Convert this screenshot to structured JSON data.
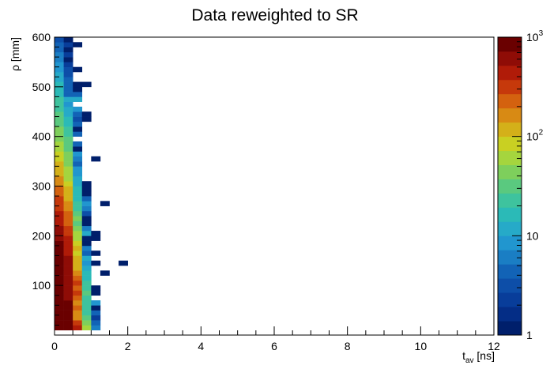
{
  "chart_data": {
    "type": "heatmap",
    "title": "Data reweighted to SR",
    "xlabel": "t",
    "xlabel_sub": "av",
    "xlabel_unit": " [ns]",
    "ylabel": "ρ [mm]",
    "xlim": [
      0,
      12
    ],
    "ylim": [
      0,
      600
    ],
    "xticks": [
      0,
      2,
      4,
      6,
      8,
      10,
      12
    ],
    "yticks": [
      100,
      200,
      300,
      400,
      500,
      600
    ],
    "colorbar": {
      "scale": "log",
      "range": [
        1,
        1000
      ],
      "ticks": [
        {
          "value": 1,
          "base": "1",
          "exp": ""
        },
        {
          "value": 10,
          "base": "10",
          "exp": ""
        },
        {
          "value": 100,
          "base": "10",
          "exp": "2"
        },
        {
          "value": 1000,
          "base": "10",
          "exp": "3"
        }
      ],
      "palette": [
        "#001f6b",
        "#042d86",
        "#083d9a",
        "#0d4ea8",
        "#1263b6",
        "#1a7ec4",
        "#2196cf",
        "#26aac8",
        "#2bbab7",
        "#3ec39e",
        "#5ac97f",
        "#7ecf5c",
        "#a5d53e",
        "#c9d022",
        "#d4b019",
        "#d88a14",
        "#d4620f",
        "#c6390b",
        "#b01b08",
        "#8f0c06",
        "#6a0000"
      ]
    },
    "bin_width_x": 0.25,
    "bin_width_y": 10,
    "bins": [
      {
        "x": 0.125,
        "y": 15,
        "v": 1000
      },
      {
        "x": 0.375,
        "y": 15,
        "v": 900
      },
      {
        "x": 0.625,
        "y": 15,
        "v": 400
      },
      {
        "x": 0.875,
        "y": 15,
        "v": 55
      },
      {
        "x": 1.125,
        "y": 15,
        "v": 6
      },
      {
        "x": 0.125,
        "y": 25,
        "v": 1000
      },
      {
        "x": 0.375,
        "y": 25,
        "v": 900
      },
      {
        "x": 0.625,
        "y": 25,
        "v": 300
      },
      {
        "x": 0.875,
        "y": 25,
        "v": 40
      },
      {
        "x": 1.125,
        "y": 25,
        "v": 4
      },
      {
        "x": 0.125,
        "y": 35,
        "v": 1000
      },
      {
        "x": 0.375,
        "y": 35,
        "v": 850
      },
      {
        "x": 0.625,
        "y": 35,
        "v": 180
      },
      {
        "x": 0.875,
        "y": 35,
        "v": 30
      },
      {
        "x": 1.125,
        "y": 35,
        "v": 2
      },
      {
        "x": 0.125,
        "y": 45,
        "v": 1000
      },
      {
        "x": 0.375,
        "y": 45,
        "v": 850
      },
      {
        "x": 0.625,
        "y": 45,
        "v": 150
      },
      {
        "x": 0.875,
        "y": 45,
        "v": 25
      },
      {
        "x": 1.125,
        "y": 45,
        "v": 5
      },
      {
        "x": 0.125,
        "y": 55,
        "v": 1000
      },
      {
        "x": 0.375,
        "y": 55,
        "v": 800
      },
      {
        "x": 0.625,
        "y": 55,
        "v": 200
      },
      {
        "x": 0.875,
        "y": 55,
        "v": 20
      },
      {
        "x": 1.125,
        "y": 55,
        "v": 1
      },
      {
        "x": 0.125,
        "y": 65,
        "v": 1000
      },
      {
        "x": 0.375,
        "y": 65,
        "v": 800
      },
      {
        "x": 0.625,
        "y": 65,
        "v": 150
      },
      {
        "x": 0.875,
        "y": 65,
        "v": 25
      },
      {
        "x": 1.125,
        "y": 65,
        "v": 8
      },
      {
        "x": 0.125,
        "y": 75,
        "v": 1000
      },
      {
        "x": 0.375,
        "y": 75,
        "v": 700
      },
      {
        "x": 0.625,
        "y": 75,
        "v": 250
      },
      {
        "x": 0.875,
        "y": 75,
        "v": 20
      },
      {
        "x": 0.125,
        "y": 85,
        "v": 1000
      },
      {
        "x": 0.375,
        "y": 85,
        "v": 700
      },
      {
        "x": 0.625,
        "y": 85,
        "v": 300
      },
      {
        "x": 0.875,
        "y": 85,
        "v": 30
      },
      {
        "x": 1.125,
        "y": 85,
        "v": 1
      },
      {
        "x": 0.125,
        "y": 95,
        "v": 1000
      },
      {
        "x": 0.375,
        "y": 95,
        "v": 700
      },
      {
        "x": 0.625,
        "y": 95,
        "v": 200
      },
      {
        "x": 0.875,
        "y": 95,
        "v": 25
      },
      {
        "x": 1.125,
        "y": 95,
        "v": 1
      },
      {
        "x": 0.125,
        "y": 105,
        "v": 1000
      },
      {
        "x": 0.375,
        "y": 105,
        "v": 650
      },
      {
        "x": 0.625,
        "y": 105,
        "v": 300
      },
      {
        "x": 0.875,
        "y": 105,
        "v": 20
      },
      {
        "x": 0.125,
        "y": 115,
        "v": 1000
      },
      {
        "x": 0.375,
        "y": 115,
        "v": 650
      },
      {
        "x": 0.625,
        "y": 115,
        "v": 250
      },
      {
        "x": 0.875,
        "y": 115,
        "v": 15
      },
      {
        "x": 0.125,
        "y": 125,
        "v": 1000
      },
      {
        "x": 0.375,
        "y": 125,
        "v": 600
      },
      {
        "x": 0.625,
        "y": 125,
        "v": 150
      },
      {
        "x": 0.875,
        "y": 125,
        "v": 15
      },
      {
        "x": 1.375,
        "y": 125,
        "v": 1
      },
      {
        "x": 0.125,
        "y": 135,
        "v": 1000
      },
      {
        "x": 0.375,
        "y": 135,
        "v": 600
      },
      {
        "x": 0.625,
        "y": 135,
        "v": 120
      },
      {
        "x": 0.875,
        "y": 135,
        "v": 10
      },
      {
        "x": 0.125,
        "y": 145,
        "v": 950
      },
      {
        "x": 0.375,
        "y": 145,
        "v": 550
      },
      {
        "x": 0.625,
        "y": 145,
        "v": 100
      },
      {
        "x": 0.875,
        "y": 145,
        "v": 8
      },
      {
        "x": 1.125,
        "y": 145,
        "v": 1
      },
      {
        "x": 1.875,
        "y": 145,
        "v": 1
      },
      {
        "x": 0.125,
        "y": 155,
        "v": 900
      },
      {
        "x": 0.375,
        "y": 155,
        "v": 550
      },
      {
        "x": 0.625,
        "y": 155,
        "v": 110
      },
      {
        "x": 0.875,
        "y": 155,
        "v": 10
      },
      {
        "x": 0.125,
        "y": 165,
        "v": 900
      },
      {
        "x": 0.375,
        "y": 165,
        "v": 500
      },
      {
        "x": 0.625,
        "y": 165,
        "v": 80
      },
      {
        "x": 0.875,
        "y": 165,
        "v": 5
      },
      {
        "x": 1.125,
        "y": 165,
        "v": 1
      },
      {
        "x": 0.125,
        "y": 175,
        "v": 800
      },
      {
        "x": 0.375,
        "y": 175,
        "v": 450
      },
      {
        "x": 0.625,
        "y": 175,
        "v": 100
      },
      {
        "x": 0.875,
        "y": 175,
        "v": 6
      },
      {
        "x": 0.125,
        "y": 185,
        "v": 750
      },
      {
        "x": 0.375,
        "y": 185,
        "v": 450
      },
      {
        "x": 0.625,
        "y": 185,
        "v": 80
      },
      {
        "x": 0.875,
        "y": 185,
        "v": 1
      },
      {
        "x": 0.125,
        "y": 195,
        "v": 700
      },
      {
        "x": 0.375,
        "y": 195,
        "v": 400
      },
      {
        "x": 0.625,
        "y": 195,
        "v": 70
      },
      {
        "x": 0.875,
        "y": 195,
        "v": 1
      },
      {
        "x": 1.125,
        "y": 195,
        "v": 1
      },
      {
        "x": 0.125,
        "y": 205,
        "v": 600
      },
      {
        "x": 0.375,
        "y": 205,
        "v": 350
      },
      {
        "x": 0.625,
        "y": 205,
        "v": 60
      },
      {
        "x": 0.875,
        "y": 205,
        "v": 10
      },
      {
        "x": 1.125,
        "y": 205,
        "v": 1
      },
      {
        "x": 0.125,
        "y": 215,
        "v": 550
      },
      {
        "x": 0.375,
        "y": 215,
        "v": 300
      },
      {
        "x": 0.625,
        "y": 215,
        "v": 50
      },
      {
        "x": 0.875,
        "y": 215,
        "v": 6
      },
      {
        "x": 0.125,
        "y": 225,
        "v": 500
      },
      {
        "x": 0.375,
        "y": 225,
        "v": 250
      },
      {
        "x": 0.625,
        "y": 225,
        "v": 30
      },
      {
        "x": 0.875,
        "y": 225,
        "v": 1
      },
      {
        "x": 0.125,
        "y": 235,
        "v": 450
      },
      {
        "x": 0.375,
        "y": 235,
        "v": 250
      },
      {
        "x": 0.625,
        "y": 235,
        "v": 40
      },
      {
        "x": 0.875,
        "y": 235,
        "v": 1
      },
      {
        "x": 0.125,
        "y": 245,
        "v": 380
      },
      {
        "x": 0.375,
        "y": 245,
        "v": 200
      },
      {
        "x": 0.625,
        "y": 245,
        "v": 30
      },
      {
        "x": 0.875,
        "y": 245,
        "v": 3
      },
      {
        "x": 0.125,
        "y": 255,
        "v": 350
      },
      {
        "x": 0.375,
        "y": 255,
        "v": 180
      },
      {
        "x": 0.625,
        "y": 255,
        "v": 25
      },
      {
        "x": 0.875,
        "y": 255,
        "v": 6
      },
      {
        "x": 0.125,
        "y": 265,
        "v": 300
      },
      {
        "x": 0.375,
        "y": 265,
        "v": 150
      },
      {
        "x": 0.625,
        "y": 265,
        "v": 20
      },
      {
        "x": 0.875,
        "y": 265,
        "v": 8
      },
      {
        "x": 1.375,
        "y": 265,
        "v": 1
      },
      {
        "x": 0.125,
        "y": 275,
        "v": 280
      },
      {
        "x": 0.375,
        "y": 275,
        "v": 120
      },
      {
        "x": 0.625,
        "y": 275,
        "v": 18
      },
      {
        "x": 0.875,
        "y": 275,
        "v": 4
      },
      {
        "x": 0.125,
        "y": 285,
        "v": 220
      },
      {
        "x": 0.375,
        "y": 285,
        "v": 100
      },
      {
        "x": 0.625,
        "y": 285,
        "v": 15
      },
      {
        "x": 0.875,
        "y": 285,
        "v": 1
      },
      {
        "x": 0.125,
        "y": 295,
        "v": 200
      },
      {
        "x": 0.375,
        "y": 295,
        "v": 100
      },
      {
        "x": 0.625,
        "y": 295,
        "v": 15
      },
      {
        "x": 0.875,
        "y": 295,
        "v": 1
      },
      {
        "x": 0.125,
        "y": 305,
        "v": 180
      },
      {
        "x": 0.375,
        "y": 305,
        "v": 80
      },
      {
        "x": 0.625,
        "y": 305,
        "v": 10
      },
      {
        "x": 0.875,
        "y": 305,
        "v": 1
      },
      {
        "x": 0.125,
        "y": 315,
        "v": 150
      },
      {
        "x": 0.375,
        "y": 315,
        "v": 70
      },
      {
        "x": 0.625,
        "y": 315,
        "v": 10
      },
      {
        "x": 0.125,
        "y": 325,
        "v": 130
      },
      {
        "x": 0.375,
        "y": 325,
        "v": 60
      },
      {
        "x": 0.625,
        "y": 325,
        "v": 8
      },
      {
        "x": 0.125,
        "y": 335,
        "v": 110
      },
      {
        "x": 0.375,
        "y": 335,
        "v": 60
      },
      {
        "x": 0.625,
        "y": 335,
        "v": 8
      },
      {
        "x": 0.125,
        "y": 345,
        "v": 100
      },
      {
        "x": 0.375,
        "y": 345,
        "v": 50
      },
      {
        "x": 0.625,
        "y": 345,
        "v": 5
      },
      {
        "x": 0.125,
        "y": 355,
        "v": 90
      },
      {
        "x": 0.375,
        "y": 355,
        "v": 45
      },
      {
        "x": 0.625,
        "y": 355,
        "v": 6
      },
      {
        "x": 1.125,
        "y": 355,
        "v": 1
      },
      {
        "x": 0.125,
        "y": 365,
        "v": 80
      },
      {
        "x": 0.375,
        "y": 365,
        "v": 40
      },
      {
        "x": 0.625,
        "y": 365,
        "v": 8
      },
      {
        "x": 0.125,
        "y": 375,
        "v": 70
      },
      {
        "x": 0.375,
        "y": 375,
        "v": 35
      },
      {
        "x": 0.625,
        "y": 375,
        "v": 1
      },
      {
        "x": 0.125,
        "y": 385,
        "v": 60
      },
      {
        "x": 0.375,
        "y": 385,
        "v": 30
      },
      {
        "x": 0.625,
        "y": 385,
        "v": 4
      },
      {
        "x": 0.125,
        "y": 395,
        "v": 50
      },
      {
        "x": 0.375,
        "y": 395,
        "v": 30
      },
      {
        "x": 0.125,
        "y": 405,
        "v": 45
      },
      {
        "x": 0.375,
        "y": 405,
        "v": 25
      },
      {
        "x": 0.625,
        "y": 405,
        "v": 5
      },
      {
        "x": 0.125,
        "y": 415,
        "v": 40
      },
      {
        "x": 0.375,
        "y": 415,
        "v": 22
      },
      {
        "x": 0.625,
        "y": 415,
        "v": 1
      },
      {
        "x": 0.125,
        "y": 425,
        "v": 35
      },
      {
        "x": 0.375,
        "y": 425,
        "v": 18
      },
      {
        "x": 0.625,
        "y": 425,
        "v": 5
      },
      {
        "x": 0.125,
        "y": 435,
        "v": 30
      },
      {
        "x": 0.375,
        "y": 435,
        "v": 15
      },
      {
        "x": 0.625,
        "y": 435,
        "v": 3
      },
      {
        "x": 0.875,
        "y": 435,
        "v": 1
      },
      {
        "x": 0.125,
        "y": 445,
        "v": 28
      },
      {
        "x": 0.375,
        "y": 445,
        "v": 12
      },
      {
        "x": 0.625,
        "y": 445,
        "v": 4
      },
      {
        "x": 0.875,
        "y": 445,
        "v": 1
      },
      {
        "x": 0.125,
        "y": 455,
        "v": 25
      },
      {
        "x": 0.375,
        "y": 455,
        "v": 10
      },
      {
        "x": 0.625,
        "y": 455,
        "v": 8
      },
      {
        "x": 0.125,
        "y": 465,
        "v": 22
      },
      {
        "x": 0.375,
        "y": 465,
        "v": 8
      },
      {
        "x": 0.125,
        "y": 475,
        "v": 20
      },
      {
        "x": 0.375,
        "y": 475,
        "v": 10
      },
      {
        "x": 0.625,
        "y": 475,
        "v": 10
      },
      {
        "x": 0.125,
        "y": 485,
        "v": 18
      },
      {
        "x": 0.375,
        "y": 485,
        "v": 5
      },
      {
        "x": 0.625,
        "y": 485,
        "v": 5
      },
      {
        "x": 0.125,
        "y": 495,
        "v": 16
      },
      {
        "x": 0.375,
        "y": 495,
        "v": 4
      },
      {
        "x": 0.625,
        "y": 495,
        "v": 1
      },
      {
        "x": 0.125,
        "y": 505,
        "v": 14
      },
      {
        "x": 0.375,
        "y": 505,
        "v": 5
      },
      {
        "x": 0.625,
        "y": 505,
        "v": 1
      },
      {
        "x": 0.875,
        "y": 505,
        "v": 1
      },
      {
        "x": 0.125,
        "y": 515,
        "v": 12
      },
      {
        "x": 0.375,
        "y": 515,
        "v": 4
      },
      {
        "x": 0.125,
        "y": 525,
        "v": 10
      },
      {
        "x": 0.375,
        "y": 525,
        "v": 3
      },
      {
        "x": 0.125,
        "y": 535,
        "v": 9
      },
      {
        "x": 0.375,
        "y": 535,
        "v": 3
      },
      {
        "x": 0.625,
        "y": 535,
        "v": 1
      },
      {
        "x": 0.125,
        "y": 545,
        "v": 8
      },
      {
        "x": 0.375,
        "y": 545,
        "v": 2
      },
      {
        "x": 0.125,
        "y": 555,
        "v": 7
      },
      {
        "x": 0.375,
        "y": 555,
        "v": 1
      },
      {
        "x": 0.125,
        "y": 565,
        "v": 6
      },
      {
        "x": 0.375,
        "y": 565,
        "v": 2
      },
      {
        "x": 0.125,
        "y": 575,
        "v": 5
      },
      {
        "x": 0.375,
        "y": 575,
        "v": 1
      },
      {
        "x": 0.125,
        "y": 585,
        "v": 4
      },
      {
        "x": 0.375,
        "y": 585,
        "v": 2
      },
      {
        "x": 0.625,
        "y": 585,
        "v": 1
      },
      {
        "x": 0.125,
        "y": 595,
        "v": 3
      },
      {
        "x": 0.375,
        "y": 595,
        "v": 1
      }
    ]
  }
}
